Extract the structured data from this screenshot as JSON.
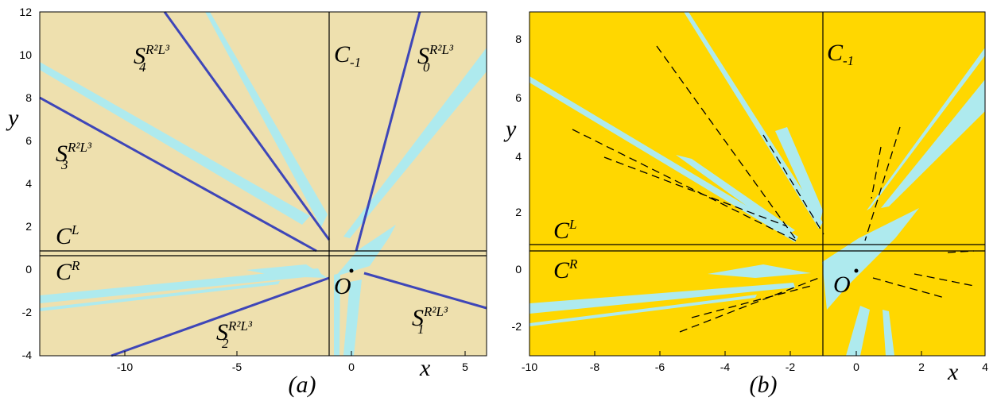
{
  "panels": [
    {
      "id": "a",
      "caption": "(a)",
      "axis_x": "x",
      "axis_y": "y",
      "bg_color": "#EEE0AE",
      "basin_color": "#AEEAEE",
      "curve_color": "#3E46B8",
      "xticks": [
        "-10",
        "-5",
        "0",
        "5"
      ],
      "yticks": [
        "12",
        "10",
        "8",
        "6",
        "4",
        "2",
        "0",
        "-2",
        "-4"
      ],
      "region_labels": [
        {
          "base": "S",
          "sub": "4",
          "sup": "R²L³"
        },
        {
          "base": "S",
          "sub": "3",
          "sup": "R²L³"
        },
        {
          "base": "S",
          "sub": "0",
          "sup": "R²L³"
        },
        {
          "base": "S",
          "sub": "2",
          "sup": "R²L³"
        },
        {
          "base": "S",
          "sub": "1",
          "sup": "R²L³"
        }
      ],
      "line_labels": [
        {
          "base": "C",
          "sub": "-1",
          "sup": ""
        },
        {
          "base": "C",
          "sub": "",
          "sup": "L"
        },
        {
          "base": "C",
          "sub": "",
          "sup": "R"
        }
      ],
      "origin_label": "O"
    },
    {
      "id": "b",
      "caption": "(b)",
      "axis_x": "x",
      "axis_y": "y",
      "bg_color": "#FFD700",
      "basin_color": "#AEEAEE",
      "xticks": [
        "-10",
        "-8",
        "-6",
        "-4",
        "-2",
        "0",
        "2",
        "4"
      ],
      "yticks": [
        "8",
        "6",
        "4",
        "2",
        "0",
        "-2"
      ],
      "line_labels": [
        {
          "base": "C",
          "sub": "-1",
          "sup": ""
        },
        {
          "base": "C",
          "sub": "",
          "sup": "L"
        },
        {
          "base": "C",
          "sub": "",
          "sup": "R"
        }
      ],
      "origin_label": "O"
    }
  ]
}
